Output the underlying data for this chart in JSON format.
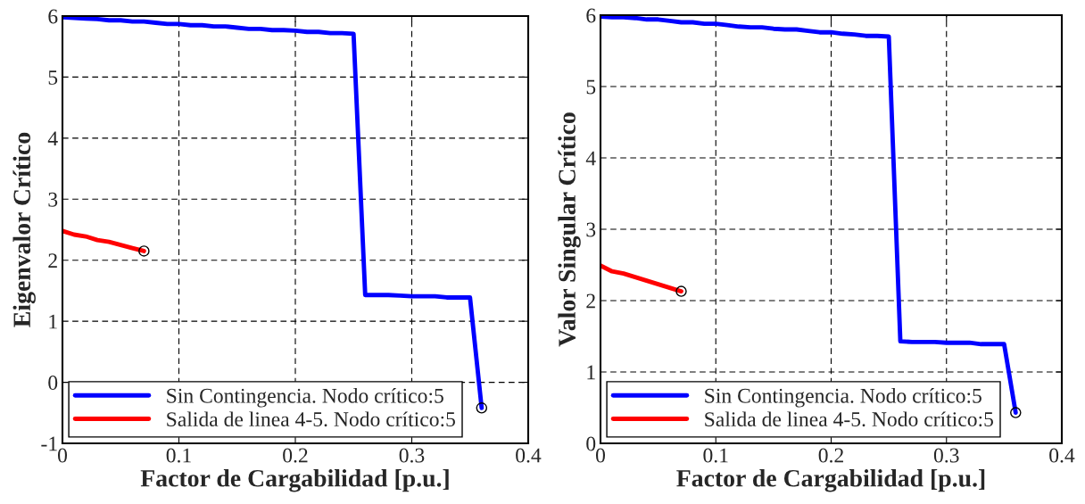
{
  "chart_data": [
    {
      "type": "line",
      "xlabel": "Factor de Cargabilidad [p.u.]",
      "ylabel": "Eigenvalor Crítico",
      "xlim": [
        0,
        0.4
      ],
      "xticks": [
        0,
        0.1,
        0.2,
        0.3,
        0.4
      ],
      "ylim": [
        -1,
        6
      ],
      "yticks": [
        -1,
        0,
        1,
        2,
        3,
        4,
        5,
        6
      ],
      "grid": true,
      "legend": "bottom left",
      "series": [
        {
          "name": "Sin Contingencia. Nodo crítico:5",
          "color": "#0000ff",
          "x": [
            0,
            0.01,
            0.02,
            0.03,
            0.04,
            0.05,
            0.06,
            0.07,
            0.08,
            0.09,
            0.1,
            0.11,
            0.12,
            0.13,
            0.14,
            0.15,
            0.16,
            0.17,
            0.18,
            0.19,
            0.2,
            0.21,
            0.22,
            0.23,
            0.24,
            0.25,
            0.26,
            0.27,
            0.28,
            0.29,
            0.3,
            0.31,
            0.32,
            0.33,
            0.34,
            0.35,
            0.36
          ],
          "values": [
            5.98,
            5.97,
            5.96,
            5.95,
            5.93,
            5.93,
            5.91,
            5.91,
            5.89,
            5.87,
            5.87,
            5.85,
            5.85,
            5.83,
            5.83,
            5.81,
            5.79,
            5.79,
            5.77,
            5.77,
            5.76,
            5.74,
            5.74,
            5.72,
            5.72,
            5.71,
            1.43,
            1.43,
            1.43,
            1.42,
            1.41,
            1.41,
            1.41,
            1.39,
            1.39,
            1.39,
            -0.42
          ]
        },
        {
          "name": "Salida de linea 4-5. Nodo crítico:5",
          "color": "#ff0000",
          "x": [
            0,
            0.01,
            0.02,
            0.03,
            0.04,
            0.05,
            0.06,
            0.07
          ],
          "values": [
            2.48,
            2.42,
            2.39,
            2.33,
            2.3,
            2.25,
            2.2,
            2.15
          ]
        },
        {
          "type": "scatter",
          "color": "#000000",
          "marker": "circle",
          "x": [
            0.36,
            0.07
          ],
          "values": [
            -0.42,
            2.15
          ]
        }
      ]
    },
    {
      "type": "line",
      "xlabel": "Factor de Cargabilidad [p.u.]",
      "ylabel": "Valor Singular Crítico",
      "xlim": [
        0,
        0.4
      ],
      "xticks": [
        0,
        0.1,
        0.2,
        0.3,
        0.4
      ],
      "ylim": [
        0,
        6
      ],
      "yticks": [
        0,
        1,
        2,
        3,
        4,
        5,
        6
      ],
      "grid": true,
      "legend": "bottom left",
      "series": [
        {
          "name": "Sin Contingencia. Nodo crítico:5",
          "color": "#0000ff",
          "x": [
            0,
            0.01,
            0.02,
            0.03,
            0.04,
            0.05,
            0.06,
            0.07,
            0.08,
            0.09,
            0.1,
            0.11,
            0.12,
            0.13,
            0.14,
            0.15,
            0.16,
            0.17,
            0.18,
            0.19,
            0.2,
            0.21,
            0.22,
            0.23,
            0.24,
            0.25,
            0.26,
            0.27,
            0.28,
            0.29,
            0.3,
            0.31,
            0.32,
            0.33,
            0.34,
            0.35,
            0.36
          ],
          "values": [
            5.98,
            5.97,
            5.97,
            5.96,
            5.94,
            5.94,
            5.92,
            5.9,
            5.9,
            5.88,
            5.88,
            5.86,
            5.84,
            5.83,
            5.83,
            5.81,
            5.8,
            5.8,
            5.78,
            5.76,
            5.76,
            5.74,
            5.73,
            5.71,
            5.71,
            5.7,
            1.43,
            1.42,
            1.42,
            1.42,
            1.41,
            1.41,
            1.41,
            1.39,
            1.39,
            1.39,
            0.43
          ]
        },
        {
          "name": "Salida de linea 4-5. Nodo crítico:5",
          "color": "#ff0000",
          "x": [
            0,
            0.01,
            0.02,
            0.03,
            0.04,
            0.05,
            0.06,
            0.07
          ],
          "values": [
            2.49,
            2.41,
            2.38,
            2.33,
            2.28,
            2.23,
            2.18,
            2.13
          ]
        },
        {
          "type": "scatter",
          "color": "#000000",
          "marker": "circle",
          "x": [
            0.36,
            0.07
          ],
          "values": [
            0.43,
            2.13
          ]
        }
      ]
    }
  ]
}
